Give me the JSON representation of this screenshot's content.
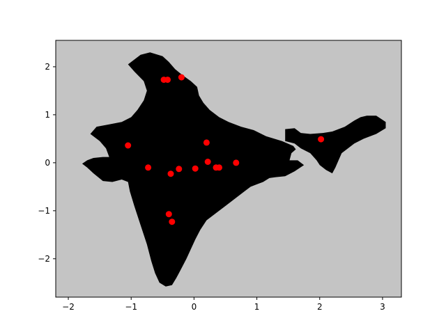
{
  "chart_data": {
    "type": "scatter",
    "title": "",
    "xlabel": "",
    "ylabel": "",
    "xlim": [
      -2.2,
      3.3
    ],
    "ylim": [
      -2.8,
      2.55
    ],
    "x_ticks": [
      -2,
      -1,
      0,
      1,
      2,
      3
    ],
    "y_ticks": [
      -2,
      -1,
      0,
      1,
      2
    ],
    "grid": false,
    "background_color": "#c4c4c4",
    "region_color": "#000000",
    "point_color": "#ff0000",
    "region_outline": [
      [
        -0.85,
        2.25
      ],
      [
        -0.7,
        2.3
      ],
      [
        -0.6,
        2.26
      ],
      [
        -0.5,
        2.22
      ],
      [
        -0.4,
        2.1
      ],
      [
        -0.3,
        1.95
      ],
      [
        -0.18,
        1.82
      ],
      [
        -0.05,
        1.7
      ],
      [
        0.05,
        1.58
      ],
      [
        0.08,
        1.4
      ],
      [
        0.15,
        1.25
      ],
      [
        0.25,
        1.1
      ],
      [
        0.4,
        0.95
      ],
      [
        0.55,
        0.85
      ],
      [
        0.75,
        0.75
      ],
      [
        0.95,
        0.68
      ],
      [
        1.15,
        0.55
      ],
      [
        1.4,
        0.45
      ],
      [
        1.58,
        0.35
      ],
      [
        1.62,
        0.28
      ],
      [
        1.55,
        0.2
      ],
      [
        1.52,
        0.05
      ],
      [
        1.65,
        0.05
      ],
      [
        1.75,
        -0.05
      ],
      [
        1.6,
        -0.18
      ],
      [
        1.45,
        -0.28
      ],
      [
        1.3,
        -0.3
      ],
      [
        1.2,
        -0.32
      ],
      [
        1.1,
        -0.4
      ],
      [
        1.0,
        -0.45
      ],
      [
        0.9,
        -0.5
      ],
      [
        0.8,
        -0.6
      ],
      [
        0.65,
        -0.75
      ],
      [
        0.5,
        -0.9
      ],
      [
        0.35,
        -1.05
      ],
      [
        0.2,
        -1.2
      ],
      [
        0.1,
        -1.4
      ],
      [
        0.02,
        -1.6
      ],
      [
        -0.05,
        -1.8
      ],
      [
        -0.12,
        -2.0
      ],
      [
        -0.2,
        -2.2
      ],
      [
        -0.28,
        -2.4
      ],
      [
        -0.35,
        -2.55
      ],
      [
        -0.45,
        -2.58
      ],
      [
        -0.55,
        -2.5
      ],
      [
        -0.62,
        -2.3
      ],
      [
        -0.68,
        -2.05
      ],
      [
        -0.75,
        -1.7
      ],
      [
        -0.85,
        -1.3
      ],
      [
        -0.95,
        -0.9
      ],
      [
        -1.02,
        -0.6
      ],
      [
        -1.05,
        -0.4
      ],
      [
        -1.15,
        -0.35
      ],
      [
        -1.3,
        -0.4
      ],
      [
        -1.45,
        -0.38
      ],
      [
        -1.6,
        -0.22
      ],
      [
        -1.7,
        -0.1
      ],
      [
        -1.78,
        -0.02
      ],
      [
        -1.7,
        0.05
      ],
      [
        -1.6,
        0.1
      ],
      [
        -1.45,
        0.12
      ],
      [
        -1.35,
        0.12
      ],
      [
        -1.4,
        0.3
      ],
      [
        -1.5,
        0.45
      ],
      [
        -1.65,
        0.6
      ],
      [
        -1.55,
        0.75
      ],
      [
        -1.35,
        0.8
      ],
      [
        -1.15,
        0.85
      ],
      [
        -1.0,
        0.95
      ],
      [
        -0.9,
        1.1
      ],
      [
        -0.8,
        1.3
      ],
      [
        -0.75,
        1.5
      ],
      [
        -0.8,
        1.7
      ],
      [
        -0.95,
        1.9
      ],
      [
        -1.05,
        2.05
      ],
      [
        -0.95,
        2.15
      ]
    ],
    "region_outline_2": [
      [
        1.45,
        0.7
      ],
      [
        1.6,
        0.72
      ],
      [
        1.7,
        0.62
      ],
      [
        1.85,
        0.6
      ],
      [
        2.05,
        0.62
      ],
      [
        2.2,
        0.65
      ],
      [
        2.4,
        0.75
      ],
      [
        2.55,
        0.88
      ],
      [
        2.65,
        0.95
      ],
      [
        2.75,
        0.98
      ],
      [
        2.9,
        0.98
      ],
      [
        3.05,
        0.85
      ],
      [
        3.05,
        0.72
      ],
      [
        2.9,
        0.6
      ],
      [
        2.7,
        0.5
      ],
      [
        2.55,
        0.4
      ],
      [
        2.45,
        0.3
      ],
      [
        2.35,
        0.2
      ],
      [
        2.3,
        0.05
      ],
      [
        2.25,
        -0.1
      ],
      [
        2.2,
        -0.22
      ],
      [
        2.1,
        -0.15
      ],
      [
        2.0,
        -0.05
      ],
      [
        1.95,
        0.05
      ],
      [
        1.85,
        0.2
      ],
      [
        1.7,
        0.3
      ],
      [
        1.6,
        0.4
      ],
      [
        1.45,
        0.45
      ]
    ],
    "series": [
      {
        "x": [
          -0.48,
          -0.42,
          -0.2,
          -1.05,
          -0.73,
          -0.37,
          -0.24,
          0.02,
          0.2,
          0.22,
          0.35,
          0.4,
          0.67,
          2.02,
          -0.4,
          -0.35
        ],
        "y": [
          1.73,
          1.73,
          1.78,
          0.36,
          -0.1,
          -0.23,
          -0.13,
          -0.12,
          0.42,
          0.02,
          -0.1,
          -0.1,
          0.0,
          0.49,
          -1.07,
          -1.23
        ]
      }
    ]
  }
}
